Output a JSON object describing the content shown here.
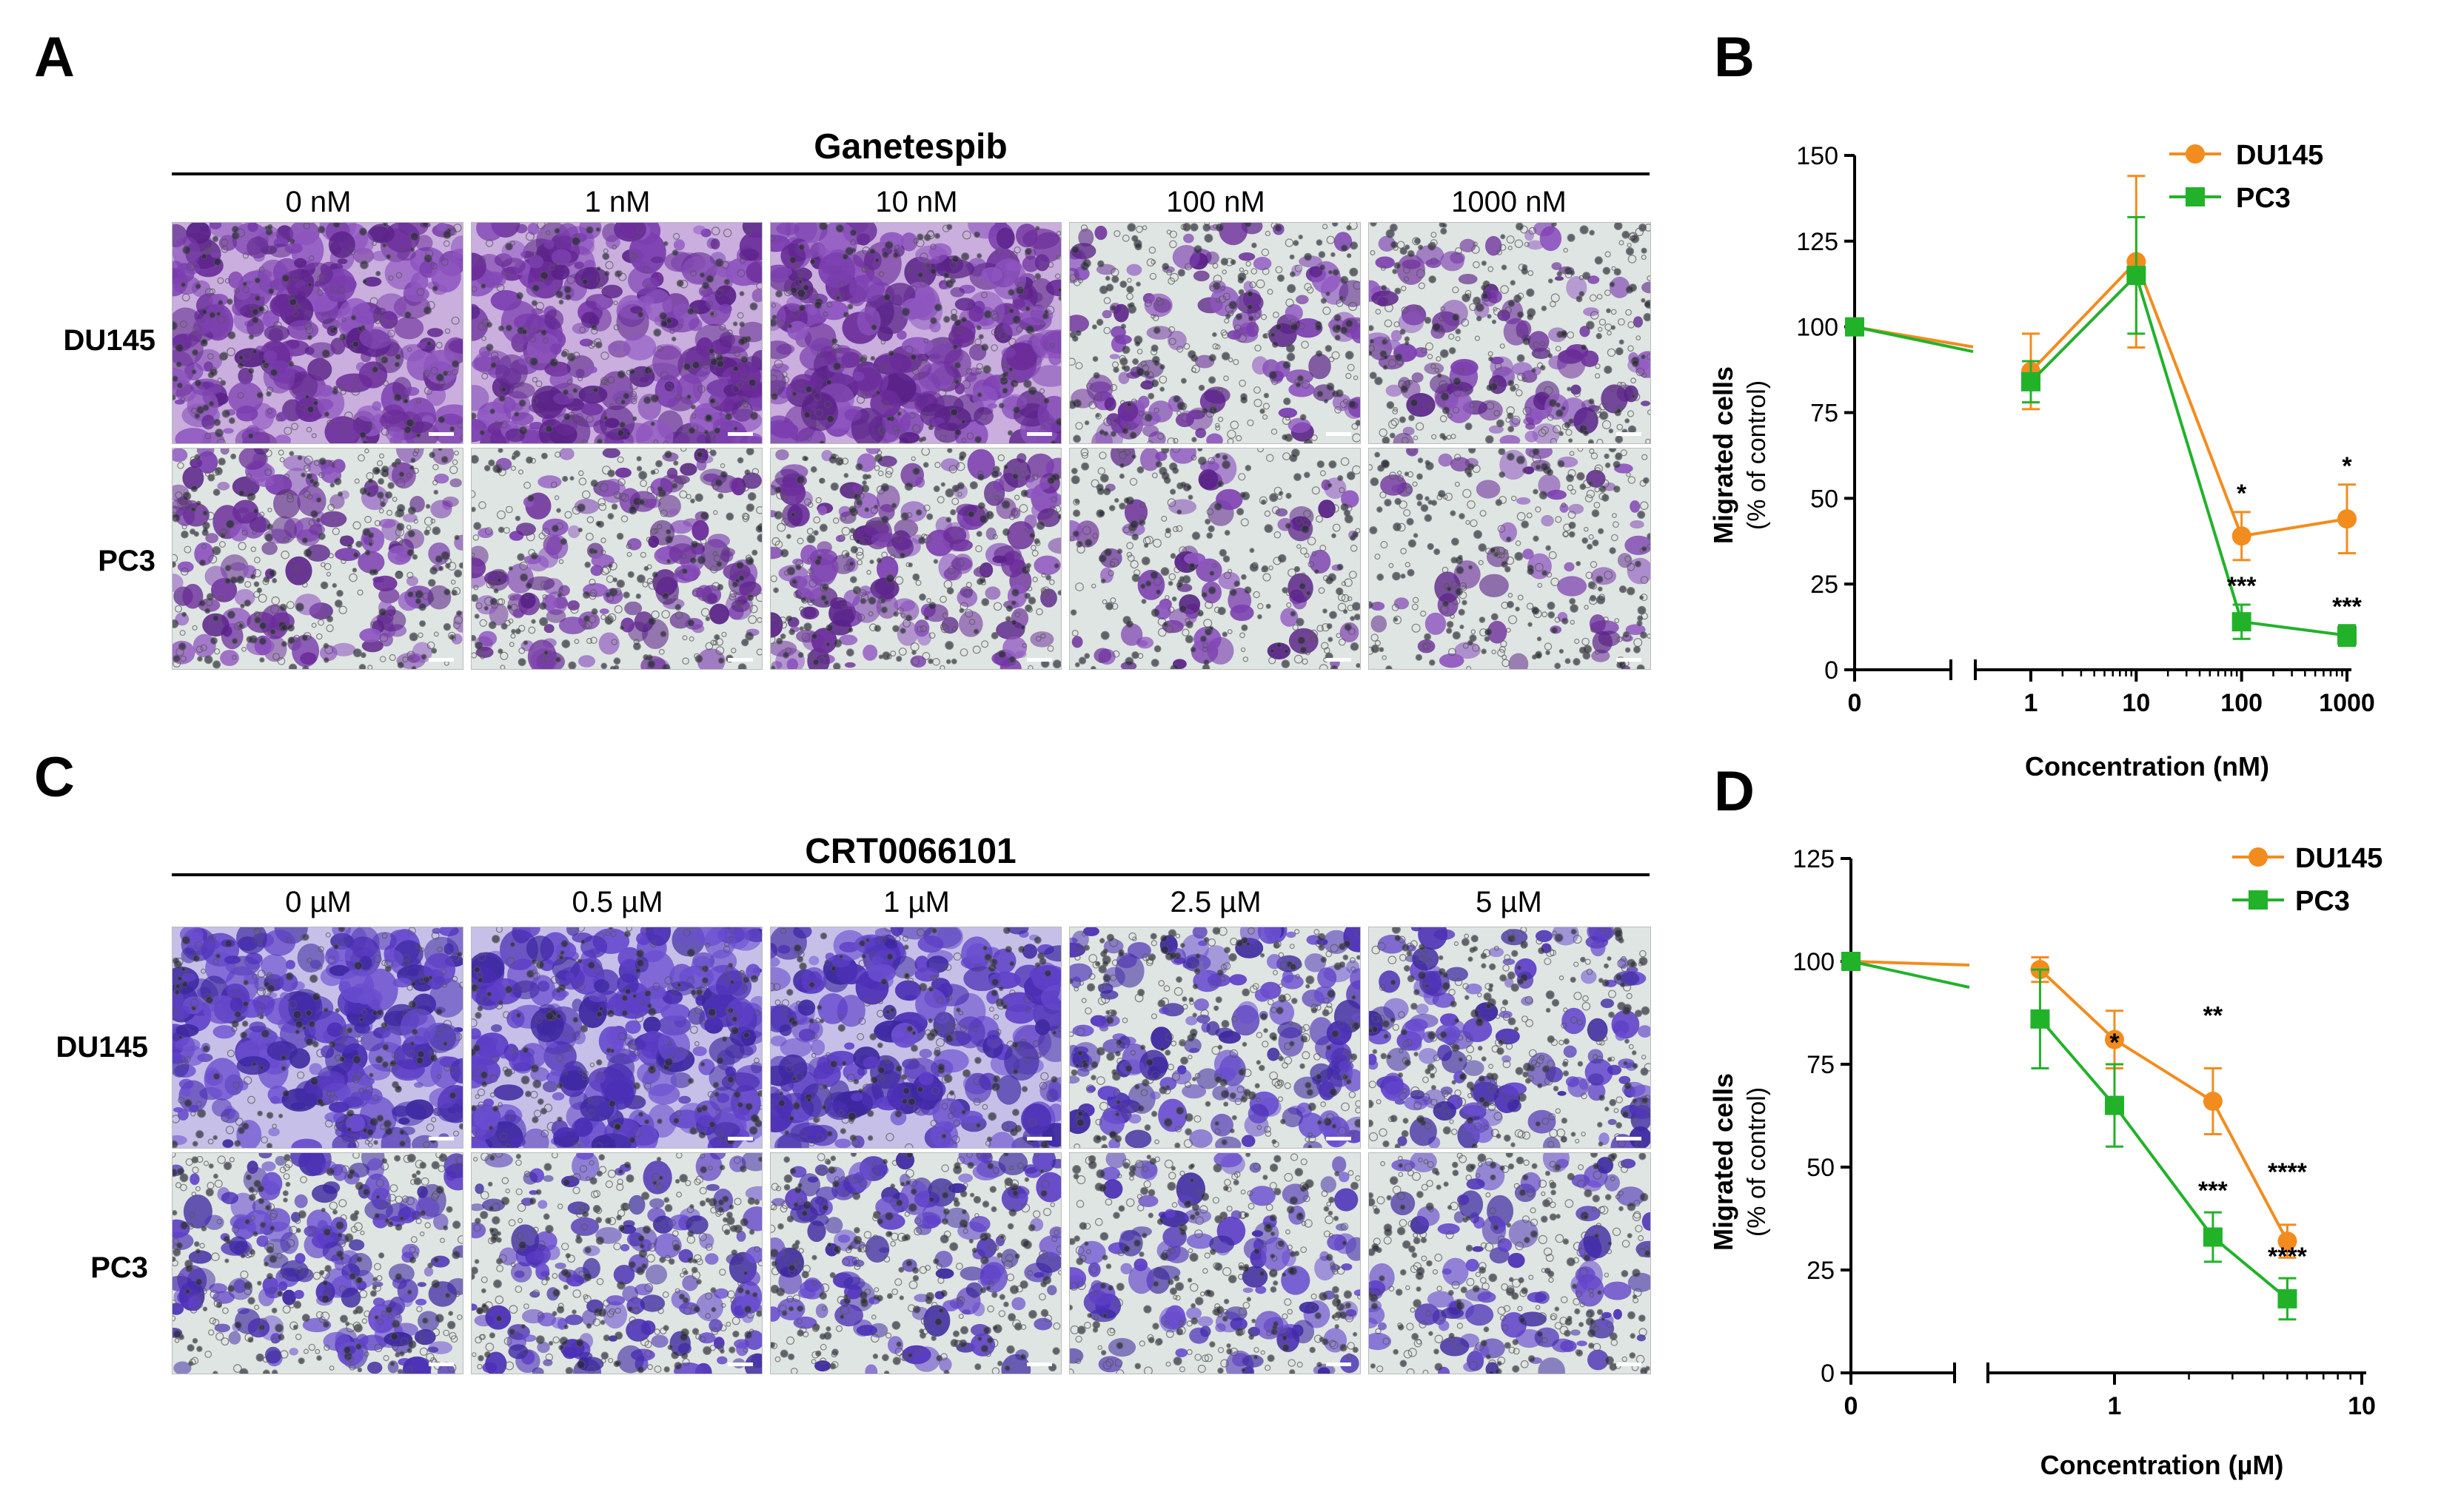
{
  "panels": {
    "a": "A",
    "b": "B",
    "c": "C",
    "d": "D"
  },
  "ganetespib": {
    "title": "Ganetespib",
    "doses": [
      "0 nM",
      "1 nM",
      "10 nM",
      "100 nM",
      "1000 nM"
    ],
    "rows": [
      "DU145",
      "PC3"
    ]
  },
  "crt": {
    "title": "CRT0066101",
    "doses": [
      "0 µM",
      "0.5 µM",
      "1 µM",
      "2.5 µM",
      "5 µM"
    ],
    "rows": [
      "DU145",
      "PC3"
    ]
  },
  "colors": {
    "du145": "#f28c1e",
    "pc3": "#22b22a",
    "stain_dense": "#6a2f9a",
    "stain_sparse": "#5b32c0"
  },
  "chart_data": [
    {
      "type": "line",
      "panel": "B",
      "xlabel": "Concentration (nM)",
      "ylabel": "Migrated cells",
      "ylabel_sub": "(% of control)",
      "x": [
        0,
        1,
        10,
        100,
        1000
      ],
      "x_tick_labels": [
        "0",
        "1",
        "10",
        "100",
        "1000"
      ],
      "y_ticks": [
        0,
        25,
        50,
        75,
        100,
        125,
        150
      ],
      "ylim": [
        0,
        150
      ],
      "legend_position": "top-right",
      "series": [
        {
          "name": "DU145",
          "values": [
            100,
            87,
            119,
            39,
            44
          ],
          "errors": [
            0,
            11,
            25,
            7,
            10
          ],
          "marker": "circle",
          "sig": [
            "",
            "",
            "",
            "*",
            "*"
          ]
        },
        {
          "name": "PC3",
          "values": [
            100,
            84,
            115,
            14,
            10
          ],
          "errors": [
            0,
            6,
            17,
            5,
            3
          ],
          "marker": "square",
          "sig": [
            "",
            "",
            "",
            "***",
            "***"
          ]
        }
      ]
    },
    {
      "type": "line",
      "panel": "D",
      "xlabel": "Concentration (µM)",
      "ylabel": "Migrated cells",
      "ylabel_sub": "(% of control)",
      "x": [
        0,
        0.5,
        1,
        2.5,
        5
      ],
      "x_tick_labels": [
        "0",
        "1",
        "10"
      ],
      "x_tick_values": [
        0,
        1,
        10
      ],
      "y_ticks": [
        0,
        25,
        50,
        75,
        100,
        125
      ],
      "ylim": [
        0,
        125
      ],
      "legend_position": "top-right",
      "series": [
        {
          "name": "DU145",
          "values": [
            100,
            98,
            81,
            66,
            32
          ],
          "errors": [
            0,
            3,
            7,
            8,
            4
          ],
          "marker": "circle",
          "sig": [
            "",
            "",
            "",
            "**",
            "****"
          ]
        },
        {
          "name": "PC3",
          "values": [
            100,
            86,
            65,
            33,
            18
          ],
          "errors": [
            0,
            12,
            10,
            6,
            5
          ],
          "marker": "square",
          "sig": [
            "",
            "",
            "*",
            "***",
            "****"
          ]
        }
      ]
    }
  ]
}
